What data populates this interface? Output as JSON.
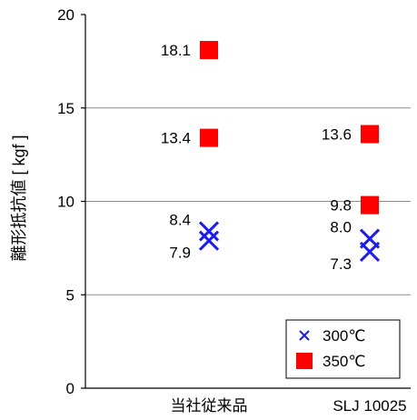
{
  "chart_data": {
    "type": "scatter",
    "ylabel": "離形抵抗値 [ kgf ]",
    "ylim": [
      0,
      20
    ],
    "yticks": [
      0,
      5,
      10,
      15,
      20
    ],
    "grid": true,
    "categories": [
      "当社従来品",
      "SLJ 10025"
    ],
    "series": [
      {
        "name": "300℃",
        "marker": "x",
        "color": "#1a1aff",
        "points": [
          {
            "category": "当社従来品",
            "values": [
              8.4,
              7.9
            ]
          },
          {
            "category": "SLJ 10025",
            "values": [
              8.0,
              7.3
            ]
          }
        ]
      },
      {
        "name": "350℃",
        "marker": "square",
        "color": "#ff0000",
        "points": [
          {
            "category": "当社従来品",
            "values": [
              18.1,
              13.4
            ]
          },
          {
            "category": "SLJ 10025",
            "values": [
              13.6,
              9.8
            ]
          }
        ]
      }
    ],
    "data_labels": {
      "当社従来品": [
        "18.1",
        "13.4",
        "8.4",
        "7.9"
      ],
      "SLJ 10025": [
        "13.6",
        "9.8",
        "8.0",
        "7.3"
      ]
    },
    "legend": {
      "position": "bottom-right",
      "entries": [
        "300℃",
        "350℃"
      ]
    }
  }
}
